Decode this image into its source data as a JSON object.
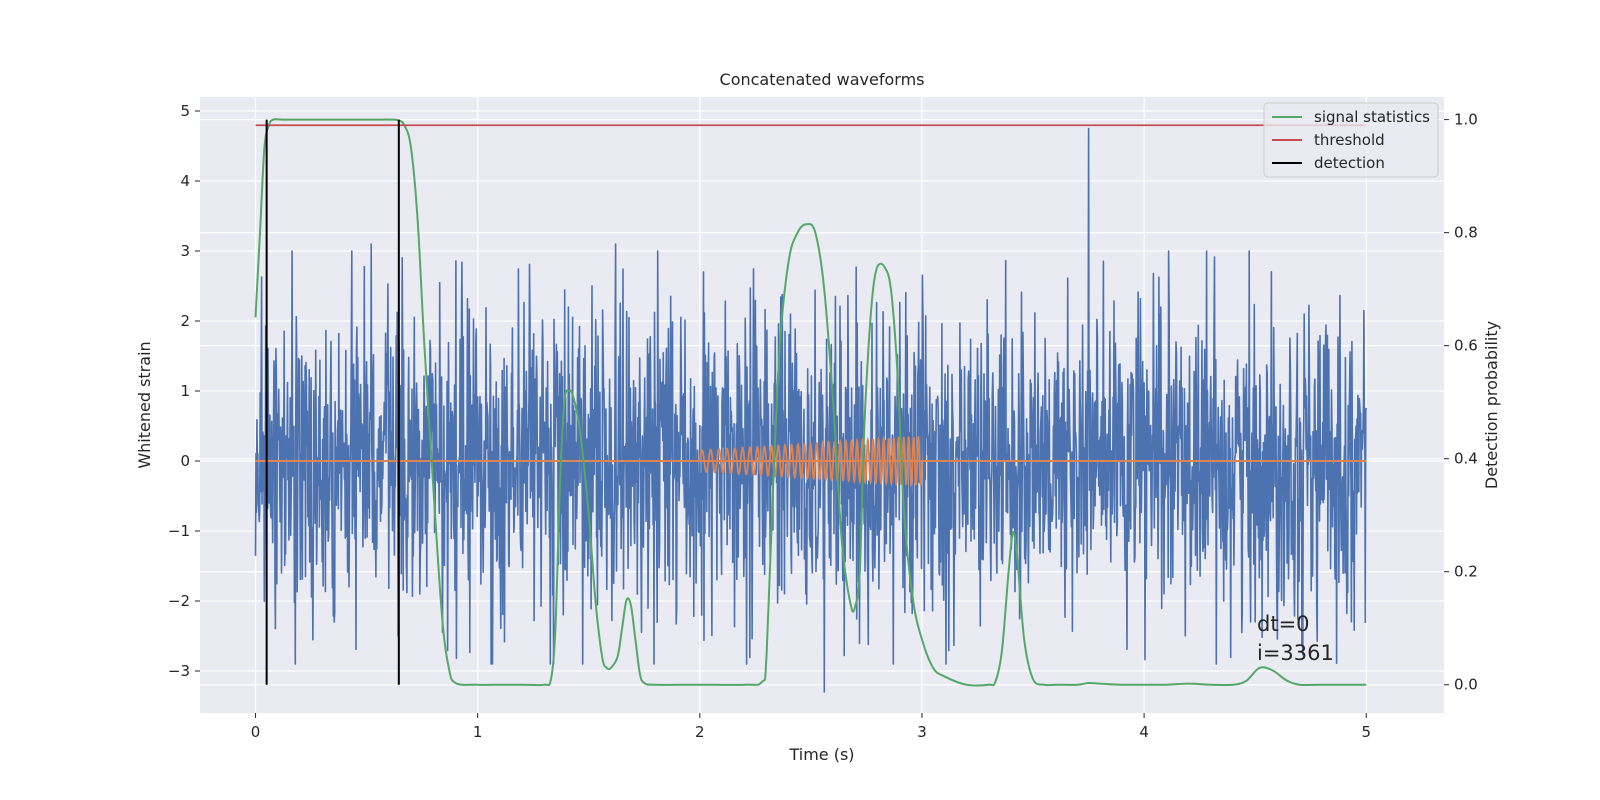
{
  "chart_data": {
    "type": "line",
    "title": "Concatenated waveforms",
    "xlabel": "Time (s)",
    "ylabel": "Whitened strain",
    "ylabel_right": "Detection probability",
    "xlim": [
      -0.25,
      5.35
    ],
    "ylim": [
      -3.6,
      5.2
    ],
    "ylim_right": [
      -0.05,
      1.04
    ],
    "xticks": [
      0,
      1,
      2,
      3,
      4,
      5
    ],
    "yticks": [
      -3,
      -2,
      -1,
      0,
      1,
      2,
      3,
      4,
      5
    ],
    "yticks_right": [
      0.0,
      0.2,
      0.4,
      0.6,
      0.8,
      1.0
    ],
    "grid": true,
    "legend_position": "top-right",
    "colors": {
      "strain": "#4c72b0",
      "injection": "#dd8452",
      "signal_statistics": "#55a868",
      "threshold": "#c44e52",
      "detection": "#000000",
      "background": "#eaeaf2"
    },
    "series": [
      {
        "name": "signal statistics",
        "axis": "right",
        "x": [
          0.0,
          0.02,
          0.04,
          0.06,
          0.08,
          0.12,
          0.2,
          0.4,
          0.55,
          0.6,
          0.64,
          0.67,
          0.7,
          0.73,
          0.76,
          0.8,
          0.84,
          0.87,
          0.9,
          1.0,
          1.1,
          1.2,
          1.3,
          1.33,
          1.35,
          1.37,
          1.39,
          1.41,
          1.43,
          1.46,
          1.5,
          1.53,
          1.56,
          1.58,
          1.6,
          1.63,
          1.65,
          1.67,
          1.69,
          1.71,
          1.73,
          1.75,
          1.8,
          2.0,
          2.2,
          2.28,
          2.3,
          2.33,
          2.36,
          2.4,
          2.44,
          2.48,
          2.52,
          2.56,
          2.6,
          2.64,
          2.68,
          2.7,
          2.72,
          2.74,
          2.76,
          2.78,
          2.8,
          2.83,
          2.86,
          2.89,
          2.92,
          2.96,
          3.0,
          3.05,
          3.1,
          3.2,
          3.3,
          3.33,
          3.36,
          3.39,
          3.41,
          3.43,
          3.46,
          3.5,
          3.55,
          3.6,
          3.7,
          3.75,
          3.8,
          3.9,
          4.0,
          4.1,
          4.2,
          4.3,
          4.4,
          4.46,
          4.52,
          4.58,
          4.64,
          4.7,
          4.8,
          5.0
        ],
        "values": [
          0.65,
          0.8,
          0.95,
          0.99,
          1.0,
          1.0,
          1.0,
          1.0,
          1.0,
          1.0,
          0.999,
          0.99,
          0.95,
          0.82,
          0.6,
          0.35,
          0.12,
          0.03,
          0.003,
          0.0,
          0.0,
          0.0,
          0.0,
          0.01,
          0.1,
          0.35,
          0.5,
          0.52,
          0.51,
          0.45,
          0.3,
          0.15,
          0.05,
          0.03,
          0.03,
          0.05,
          0.1,
          0.15,
          0.14,
          0.08,
          0.02,
          0.003,
          0.0,
          0.0,
          0.0,
          0.005,
          0.05,
          0.35,
          0.6,
          0.75,
          0.8,
          0.815,
          0.8,
          0.7,
          0.5,
          0.25,
          0.14,
          0.14,
          0.2,
          0.45,
          0.6,
          0.7,
          0.74,
          0.74,
          0.7,
          0.55,
          0.3,
          0.15,
          0.08,
          0.03,
          0.015,
          0.0,
          0.0,
          0.005,
          0.06,
          0.2,
          0.27,
          0.22,
          0.08,
          0.01,
          0.0,
          0.0,
          0.0,
          0.003,
          0.002,
          0.0,
          0.0,
          0.0,
          0.002,
          0.0,
          0.0,
          0.007,
          0.03,
          0.025,
          0.008,
          0.0,
          0.0,
          0.0
        ]
      },
      {
        "name": "threshold",
        "axis": "right",
        "x": [
          0.0,
          5.0
        ],
        "values": [
          0.99,
          0.99
        ]
      },
      {
        "name": "detection",
        "axis": "right",
        "segments": [
          {
            "x": 0.05,
            "y": [
              0.0,
              1.0
            ]
          },
          {
            "x": 0.645,
            "y": [
              0.0,
              1.0
            ]
          }
        ]
      }
    ],
    "strain": {
      "x_range": [
        0.0,
        5.0
      ],
      "typical_amplitude": 1.5,
      "extremes": [
        {
          "x": 0.52,
          "value": 3.1
        },
        {
          "x": 1.62,
          "value": 3.1
        },
        {
          "x": 3.75,
          "value": 4.75
        },
        {
          "x": 2.56,
          "value": -3.3
        },
        {
          "x": 4.48,
          "value": -2.3
        }
      ]
    },
    "injection": {
      "x_range": [
        2.0,
        3.0
      ],
      "amplitude_start": 0.15,
      "amplitude_end": 0.35,
      "baseline": 0.0,
      "cycles": 36
    },
    "annotations": [
      "dt=0",
      "i=3361"
    ]
  }
}
